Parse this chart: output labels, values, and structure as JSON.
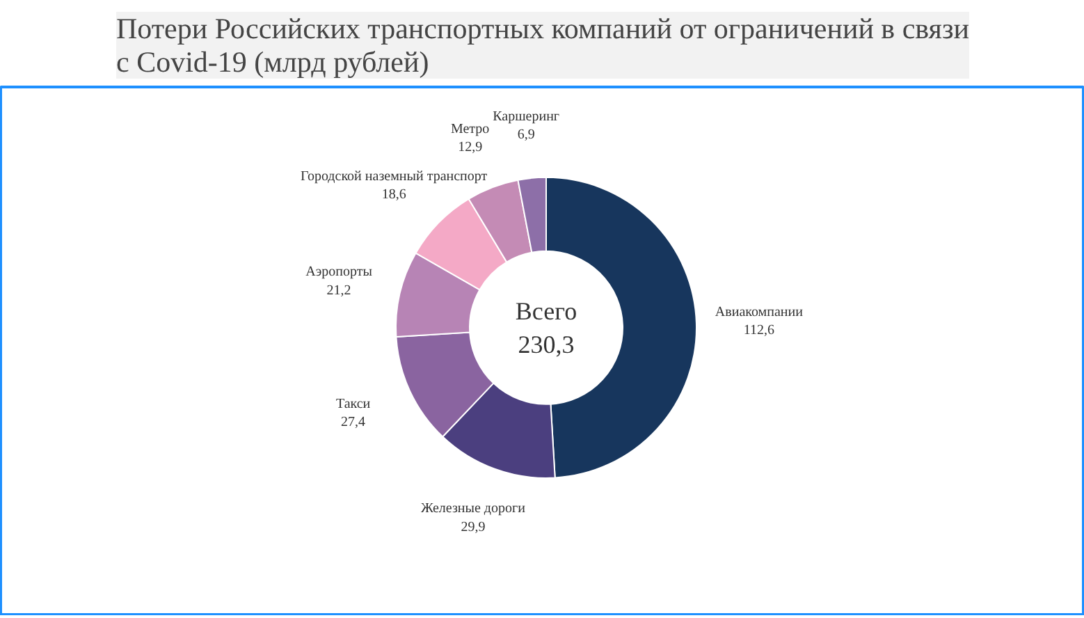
{
  "chart_data": {
    "type": "donut",
    "title": "Потери Российских транспортных компаний от ограничений в связи с Covid-19 (млрд рублей)",
    "categories": [
      "Авиакомпании",
      "Железные дороги",
      "Такси",
      "Аэропорты",
      "Городской наземный транспорт",
      "Метро",
      "Каршеринг"
    ],
    "values": [
      112.6,
      29.9,
      27.4,
      21.2,
      18.6,
      12.9,
      6.9
    ],
    "value_labels": [
      "112,6",
      "29,9",
      "27,4",
      "21,2",
      "18,6",
      "12,9",
      "6,9"
    ],
    "colors": [
      "#17365d",
      "#4b3f7f",
      "#8a64a0",
      "#b784b5",
      "#f4a9c6",
      "#c48bb5",
      "#8d6fa8"
    ],
    "annotations": [
      "Всего\n230,3"
    ]
  }
}
